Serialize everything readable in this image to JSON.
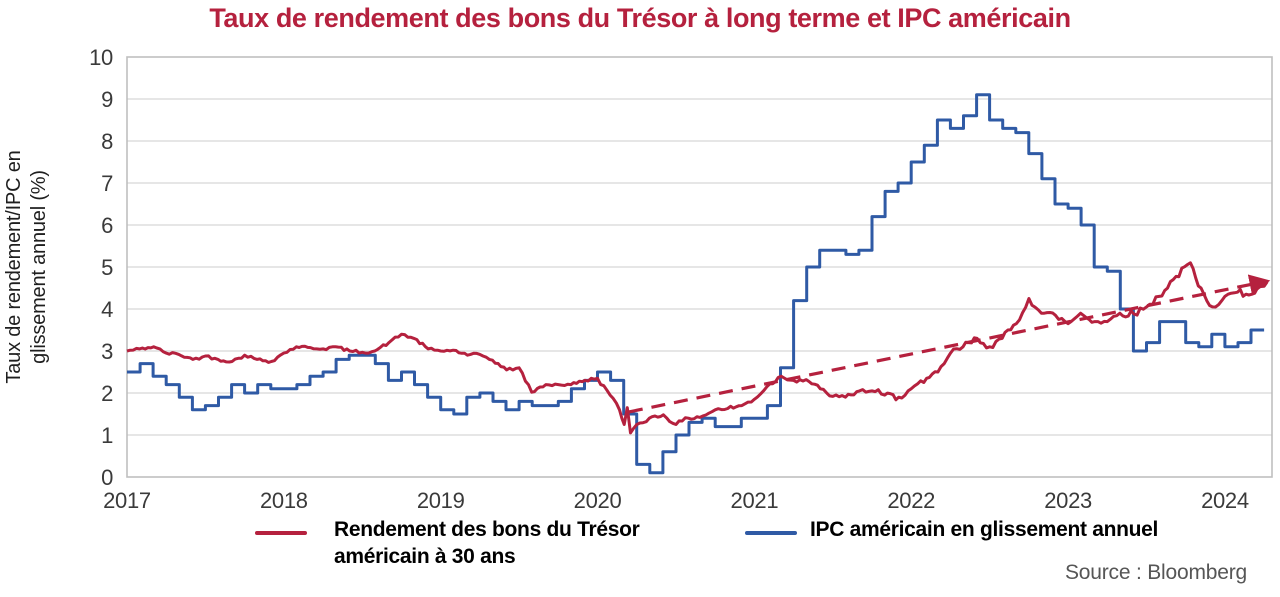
{
  "title": "Taux de rendement des bons du Trésor à long terme et IPC américain",
  "y_axis": {
    "label": "Taux de rendement/IPC en\nglissement annuel (%)"
  },
  "source": "Source : Bloomberg",
  "legend": {
    "items": [
      {
        "label": "Rendement des bons du Trésor\naméricain à 30 ans",
        "color": "#B5213E"
      },
      {
        "label": "IPC américain en glissement annuel",
        "color": "#2F5AA5"
      }
    ]
  },
  "chart_data": {
    "type": "line",
    "title": "Taux de rendement des bons du Trésor à long terme et IPC américain",
    "xlabel": "",
    "ylabel": "Taux de rendement/IPC en glissement annuel (%)",
    "x_domain": [
      2017,
      2024.3
    ],
    "y_domain": [
      0,
      10
    ],
    "x_ticks": [
      2017,
      2018,
      2019,
      2020,
      2021,
      2022,
      2023,
      2024
    ],
    "y_ticks": [
      0,
      1,
      2,
      3,
      4,
      5,
      6,
      7,
      8,
      9,
      10
    ],
    "grid": "horizontal",
    "legend_position": "bottom",
    "colors": {
      "treasury": "#B5213E",
      "cpi": "#2F5AA5",
      "gridline": "#D8D8D8",
      "plot_border": "#BFBFBF"
    },
    "series": [
      {
        "name": "Rendement des bons du Trésor américain à 30 ans",
        "color": "#B5213E",
        "style": "solid",
        "points": [
          [
            2017.0,
            3.0
          ],
          [
            2017.08,
            3.05
          ],
          [
            2017.17,
            3.1
          ],
          [
            2017.25,
            2.95
          ],
          [
            2017.33,
            2.92
          ],
          [
            2017.42,
            2.8
          ],
          [
            2017.5,
            2.88
          ],
          [
            2017.58,
            2.8
          ],
          [
            2017.67,
            2.75
          ],
          [
            2017.75,
            2.9
          ],
          [
            2017.83,
            2.8
          ],
          [
            2017.92,
            2.75
          ],
          [
            2018.0,
            2.95
          ],
          [
            2018.08,
            3.1
          ],
          [
            2018.17,
            3.08
          ],
          [
            2018.25,
            3.05
          ],
          [
            2018.33,
            3.1
          ],
          [
            2018.42,
            3.0
          ],
          [
            2018.5,
            2.97
          ],
          [
            2018.58,
            3.0
          ],
          [
            2018.67,
            3.2
          ],
          [
            2018.75,
            3.4
          ],
          [
            2018.83,
            3.3
          ],
          [
            2018.92,
            3.05
          ],
          [
            2019.0,
            3.0
          ],
          [
            2019.08,
            3.02
          ],
          [
            2019.17,
            2.9
          ],
          [
            2019.25,
            2.92
          ],
          [
            2019.33,
            2.78
          ],
          [
            2019.42,
            2.55
          ],
          [
            2019.5,
            2.6
          ],
          [
            2019.58,
            2.02
          ],
          [
            2019.67,
            2.2
          ],
          [
            2019.75,
            2.2
          ],
          [
            2019.83,
            2.2
          ],
          [
            2019.92,
            2.3
          ],
          [
            2020.0,
            2.35
          ],
          [
            2020.08,
            1.95
          ],
          [
            2020.14,
            1.6
          ],
          [
            2020.17,
            1.25
          ],
          [
            2020.19,
            1.65
          ],
          [
            2020.21,
            1.05
          ],
          [
            2020.25,
            1.25
          ],
          [
            2020.33,
            1.4
          ],
          [
            2020.42,
            1.48
          ],
          [
            2020.5,
            1.25
          ],
          [
            2020.58,
            1.4
          ],
          [
            2020.67,
            1.45
          ],
          [
            2020.75,
            1.6
          ],
          [
            2020.83,
            1.63
          ],
          [
            2020.92,
            1.7
          ],
          [
            2021.0,
            1.85
          ],
          [
            2021.08,
            2.15
          ],
          [
            2021.17,
            2.4
          ],
          [
            2021.25,
            2.3
          ],
          [
            2021.33,
            2.32
          ],
          [
            2021.42,
            2.1
          ],
          [
            2021.5,
            1.92
          ],
          [
            2021.58,
            1.9
          ],
          [
            2021.67,
            2.05
          ],
          [
            2021.75,
            2.05
          ],
          [
            2021.83,
            1.95
          ],
          [
            2021.92,
            1.9
          ],
          [
            2022.0,
            2.1
          ],
          [
            2022.08,
            2.25
          ],
          [
            2022.17,
            2.5
          ],
          [
            2022.25,
            2.95
          ],
          [
            2022.33,
            3.1
          ],
          [
            2022.42,
            3.3
          ],
          [
            2022.5,
            3.1
          ],
          [
            2022.58,
            3.3
          ],
          [
            2022.67,
            3.65
          ],
          [
            2022.75,
            4.25
          ],
          [
            2022.83,
            3.9
          ],
          [
            2022.92,
            3.85
          ],
          [
            2023.0,
            3.65
          ],
          [
            2023.08,
            3.9
          ],
          [
            2023.17,
            3.7
          ],
          [
            2023.25,
            3.7
          ],
          [
            2023.33,
            3.9
          ],
          [
            2023.42,
            3.88
          ],
          [
            2023.5,
            4.05
          ],
          [
            2023.58,
            4.3
          ],
          [
            2023.67,
            4.7
          ],
          [
            2023.78,
            5.1
          ],
          [
            2023.83,
            4.55
          ],
          [
            2023.92,
            4.05
          ],
          [
            2024.0,
            4.3
          ],
          [
            2024.08,
            4.4
          ],
          [
            2024.17,
            4.35
          ],
          [
            2024.27,
            4.65
          ]
        ]
      },
      {
        "name": "IPC américain en glissement annuel",
        "color": "#2F5AA5",
        "style": "step",
        "start": 2017,
        "step_years": 0.08333,
        "end": 2024.3,
        "values": [
          2.5,
          2.7,
          2.4,
          2.2,
          1.9,
          1.6,
          1.7,
          1.9,
          2.2,
          2.0,
          2.2,
          2.1,
          2.1,
          2.2,
          2.4,
          2.5,
          2.8,
          2.9,
          2.9,
          2.7,
          2.3,
          2.5,
          2.2,
          1.9,
          1.6,
          1.5,
          1.9,
          2.0,
          1.8,
          1.6,
          1.8,
          1.7,
          1.7,
          1.8,
          2.1,
          2.3,
          2.5,
          2.3,
          1.5,
          0.3,
          0.1,
          0.6,
          1.0,
          1.3,
          1.4,
          1.2,
          1.2,
          1.4,
          1.4,
          1.7,
          2.6,
          4.2,
          5.0,
          5.4,
          5.4,
          5.3,
          5.4,
          6.2,
          6.8,
          7.0,
          7.5,
          7.9,
          8.5,
          8.3,
          8.6,
          9.1,
          8.5,
          8.3,
          8.2,
          7.7,
          7.1,
          6.5,
          6.4,
          6.0,
          5.0,
          4.9,
          4.0,
          3.0,
          3.2,
          3.7,
          3.7,
          3.2,
          3.1,
          3.4,
          3.1,
          3.2,
          3.5
        ]
      }
    ],
    "trendline": {
      "name": "tendance rendement 30 ans",
      "color": "#B5213E",
      "style": "dashed-arrow",
      "from": [
        2020.2,
        1.55
      ],
      "to": [
        2024.25,
        4.65
      ]
    }
  }
}
